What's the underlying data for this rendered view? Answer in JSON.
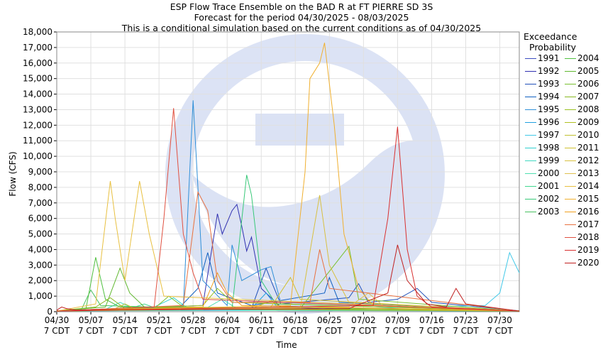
{
  "chart_data": {
    "type": "line",
    "title": "ESP Flow Trace Ensemble on the BAD R at FT PIERRE SD 3S",
    "subtitle": "Forecast for the period 04/30/2025 - 08/03/2025",
    "subtitle2": "This is a conditional simulation based on the current conditions as of 04/30/2025",
    "xlabel": "Time",
    "ylabel": "Flow (CFS)",
    "ylim": [
      0,
      18000
    ],
    "xlim_days": [
      0,
      95
    ],
    "yticks": [
      0,
      1000,
      2000,
      3000,
      4000,
      5000,
      6000,
      7000,
      8000,
      9000,
      10000,
      11000,
      12000,
      13000,
      14000,
      15000,
      16000,
      17000,
      18000
    ],
    "ytick_labels": [
      "0",
      "1,000",
      "2,000",
      "3,000",
      "4,000",
      "5,000",
      "6,000",
      "7,000",
      "8,000",
      "9,000",
      "10,000",
      "11,000",
      "12,000",
      "13,000",
      "14,000",
      "15,000",
      "16,000",
      "17,000",
      "18,000"
    ],
    "xticks": [
      {
        "day": 0,
        "l1": "04/30",
        "l2": "7 CDT"
      },
      {
        "day": 7,
        "l1": "05/07",
        "l2": "7 CDT"
      },
      {
        "day": 14,
        "l1": "05/14",
        "l2": "7 CDT"
      },
      {
        "day": 21,
        "l1": "05/21",
        "l2": "7 CDT"
      },
      {
        "day": 28,
        "l1": "05/28",
        "l2": "7 CDT"
      },
      {
        "day": 35,
        "l1": "06/04",
        "l2": "7 CDT"
      },
      {
        "day": 42,
        "l1": "06/11",
        "l2": "7 CDT"
      },
      {
        "day": 49,
        "l1": "06/18",
        "l2": "7 CDT"
      },
      {
        "day": 56,
        "l1": "06/25",
        "l2": "7 CDT"
      },
      {
        "day": 63,
        "l1": "07/02",
        "l2": "7 CDT"
      },
      {
        "day": 70,
        "l1": "07/09",
        "l2": "7 CDT"
      },
      {
        "day": 77,
        "l1": "07/16",
        "l2": "7 CDT"
      },
      {
        "day": 84,
        "l1": "07/23",
        "l2": "7 CDT"
      },
      {
        "day": 91,
        "l1": "07/30",
        "l2": "7 CDT"
      }
    ],
    "grid": true,
    "legend_title": [
      "Exceedance",
      "Probability"
    ],
    "legend_position": "right",
    "watermark": "NOAA",
    "series": [
      {
        "name": "1991",
        "color": "#3b4cc0",
        "points": [
          [
            0,
            50
          ],
          [
            20,
            80
          ],
          [
            40,
            150
          ],
          [
            60,
            120
          ],
          [
            80,
            60
          ],
          [
            95,
            40
          ]
        ]
      },
      {
        "name": "1992",
        "color": "#3030b0",
        "points": [
          [
            0,
            60
          ],
          [
            30,
            400
          ],
          [
            33,
            6300
          ],
          [
            34,
            5000
          ],
          [
            36,
            6500
          ],
          [
            37,
            6900
          ],
          [
            38,
            5500
          ],
          [
            39,
            3900
          ],
          [
            40,
            4800
          ],
          [
            42,
            1500
          ],
          [
            46,
            300
          ],
          [
            60,
            120
          ],
          [
            95,
            50
          ]
        ]
      },
      {
        "name": "1993",
        "color": "#2050b8",
        "points": [
          [
            0,
            60
          ],
          [
            40,
            200
          ],
          [
            43,
            2800
          ],
          [
            44,
            2000
          ],
          [
            46,
            500
          ],
          [
            60,
            900
          ],
          [
            62,
            1800
          ],
          [
            64,
            600
          ],
          [
            70,
            800
          ],
          [
            74,
            1500
          ],
          [
            77,
            600
          ],
          [
            95,
            60
          ]
        ]
      },
      {
        "name": "1994",
        "color": "#1060c0",
        "points": [
          [
            0,
            50
          ],
          [
            25,
            200
          ],
          [
            29,
            1500
          ],
          [
            31,
            3800
          ],
          [
            33,
            1200
          ],
          [
            40,
            400
          ],
          [
            55,
            1200
          ],
          [
            56,
            2200
          ],
          [
            58,
            600
          ],
          [
            95,
            40
          ]
        ]
      },
      {
        "name": "1995",
        "color": "#2f8fd8",
        "points": [
          [
            0,
            50
          ],
          [
            26,
            300
          ],
          [
            28,
            13600
          ],
          [
            29,
            8000
          ],
          [
            30,
            2000
          ],
          [
            35,
            400
          ],
          [
            36,
            4300
          ],
          [
            38,
            2000
          ],
          [
            42,
            2700
          ],
          [
            44,
            2900
          ],
          [
            46,
            600
          ],
          [
            95,
            60
          ]
        ]
      },
      {
        "name": "1996",
        "color": "#20a0e0",
        "points": [
          [
            0,
            50
          ],
          [
            40,
            200
          ],
          [
            43,
            1200
          ],
          [
            45,
            400
          ],
          [
            60,
            150
          ],
          [
            95,
            50
          ]
        ]
      },
      {
        "name": "1997",
        "color": "#40c8e8",
        "points": [
          [
            0,
            40
          ],
          [
            50,
            100
          ],
          [
            88,
            400
          ],
          [
            91,
            1200
          ],
          [
            93,
            3800
          ],
          [
            95,
            2500
          ]
        ]
      },
      {
        "name": "1998",
        "color": "#30d0d0",
        "points": [
          [
            0,
            40
          ],
          [
            20,
            300
          ],
          [
            24,
            900
          ],
          [
            27,
            200
          ],
          [
            50,
            80
          ],
          [
            95,
            40
          ]
        ]
      },
      {
        "name": "1999",
        "color": "#40d8c0",
        "points": [
          [
            0,
            50
          ],
          [
            10,
            150
          ],
          [
            13,
            600
          ],
          [
            16,
            200
          ],
          [
            40,
            100
          ],
          [
            95,
            50
          ]
        ]
      },
      {
        "name": "2000",
        "color": "#50e0b0",
        "points": [
          [
            0,
            40
          ],
          [
            30,
            100
          ],
          [
            34,
            800
          ],
          [
            37,
            200
          ],
          [
            60,
            100
          ],
          [
            95,
            40
          ]
        ]
      },
      {
        "name": "2001",
        "color": "#40d890",
        "points": [
          [
            0,
            40
          ],
          [
            15,
            200
          ],
          [
            18,
            500
          ],
          [
            21,
            150
          ],
          [
            95,
            40
          ]
        ]
      },
      {
        "name": "2002",
        "color": "#38c878",
        "points": [
          [
            0,
            50
          ],
          [
            36,
            200
          ],
          [
            39,
            8800
          ],
          [
            40,
            7500
          ],
          [
            42,
            2000
          ],
          [
            45,
            500
          ],
          [
            95,
            50
          ]
        ]
      },
      {
        "name": "2003",
        "color": "#48c060",
        "points": [
          [
            0,
            40
          ],
          [
            5,
            100
          ],
          [
            7,
            1400
          ],
          [
            9,
            400
          ],
          [
            30,
            200
          ],
          [
            95,
            40
          ]
        ]
      },
      {
        "name": "2004",
        "color": "#50c040",
        "points": [
          [
            0,
            40
          ],
          [
            6,
            200
          ],
          [
            8,
            3500
          ],
          [
            10,
            800
          ],
          [
            13,
            300
          ],
          [
            95,
            40
          ]
        ]
      },
      {
        "name": "2005",
        "color": "#60b830",
        "points": [
          [
            0,
            50
          ],
          [
            10,
            300
          ],
          [
            13,
            2800
          ],
          [
            15,
            1200
          ],
          [
            18,
            300
          ],
          [
            95,
            50
          ]
        ]
      },
      {
        "name": "2006",
        "color": "#78c030",
        "points": [
          [
            0,
            40
          ],
          [
            20,
            200
          ],
          [
            23,
            1000
          ],
          [
            26,
            300
          ],
          [
            50,
            200
          ],
          [
            60,
            4200
          ],
          [
            62,
            800
          ],
          [
            95,
            40
          ]
        ]
      },
      {
        "name": "2007",
        "color": "#88b820",
        "points": [
          [
            0,
            50
          ],
          [
            8,
            300
          ],
          [
            11,
            900
          ],
          [
            14,
            200
          ],
          [
            95,
            40
          ]
        ]
      },
      {
        "name": "2008",
        "color": "#98c020",
        "points": [
          [
            0,
            40
          ],
          [
            30,
            400
          ],
          [
            33,
            1500
          ],
          [
            36,
            600
          ],
          [
            95,
            40
          ]
        ]
      },
      {
        "name": "2009",
        "color": "#b0c020",
        "points": [
          [
            0,
            40
          ],
          [
            40,
            200
          ],
          [
            44,
            700
          ],
          [
            46,
            300
          ],
          [
            95,
            40
          ]
        ]
      },
      {
        "name": "2010",
        "color": "#c0c030",
        "points": [
          [
            0,
            50
          ],
          [
            12,
            200
          ],
          [
            14,
            500
          ],
          [
            16,
            200
          ],
          [
            95,
            50
          ]
        ]
      },
      {
        "name": "2011",
        "color": "#d0c030",
        "points": [
          [
            0,
            40
          ],
          [
            44,
            300
          ],
          [
            48,
            2200
          ],
          [
            50,
            800
          ],
          [
            95,
            40
          ]
        ]
      },
      {
        "name": "2012",
        "color": "#d8c040",
        "points": [
          [
            0,
            50
          ],
          [
            50,
            200
          ],
          [
            54,
            7500
          ],
          [
            56,
            3000
          ],
          [
            60,
            600
          ],
          [
            95,
            50
          ]
        ]
      },
      {
        "name": "2013",
        "color": "#e0c050",
        "points": [
          [
            0,
            40
          ],
          [
            60,
            300
          ],
          [
            64,
            1200
          ],
          [
            67,
            400
          ],
          [
            95,
            40
          ]
        ]
      },
      {
        "name": "2014",
        "color": "#e8c040",
        "points": [
          [
            0,
            40
          ],
          [
            8,
            500
          ],
          [
            11,
            8400
          ],
          [
            12,
            6000
          ],
          [
            14,
            2000
          ],
          [
            17,
            8400
          ],
          [
            19,
            5000
          ],
          [
            22,
            1000
          ],
          [
            95,
            40
          ]
        ]
      },
      {
        "name": "2015",
        "color": "#f0b030",
        "points": [
          [
            0,
            40
          ],
          [
            48,
            400
          ],
          [
            51,
            9000
          ],
          [
            52,
            15000
          ],
          [
            54,
            16000
          ],
          [
            55,
            17300
          ],
          [
            57,
            12000
          ],
          [
            59,
            5000
          ],
          [
            62,
            1500
          ],
          [
            65,
            400
          ],
          [
            95,
            40
          ]
        ]
      },
      {
        "name": "2016",
        "color": "#f0a020",
        "points": [
          [
            0,
            40
          ],
          [
            30,
            300
          ],
          [
            33,
            2500
          ],
          [
            35,
            1200
          ],
          [
            38,
            400
          ],
          [
            95,
            40
          ]
        ]
      },
      {
        "name": "2017",
        "color": "#e87040",
        "points": [
          [
            0,
            40
          ],
          [
            26,
            400
          ],
          [
            29,
            7700
          ],
          [
            31,
            6500
          ],
          [
            33,
            2000
          ],
          [
            36,
            600
          ],
          [
            52,
            600
          ],
          [
            54,
            4000
          ],
          [
            56,
            1500
          ],
          [
            95,
            40
          ]
        ]
      },
      {
        "name": "2018",
        "color": "#e05040",
        "points": [
          [
            0,
            40
          ],
          [
            20,
            300
          ],
          [
            22,
            6000
          ],
          [
            24,
            13100
          ],
          [
            26,
            5000
          ],
          [
            28,
            2500
          ],
          [
            30,
            800
          ],
          [
            95,
            40
          ]
        ]
      },
      {
        "name": "2019",
        "color": "#d83030",
        "points": [
          [
            0,
            40
          ],
          [
            65,
            400
          ],
          [
            68,
            6000
          ],
          [
            70,
            11900
          ],
          [
            72,
            4000
          ],
          [
            74,
            1000
          ],
          [
            77,
            300
          ],
          [
            95,
            40
          ]
        ]
      },
      {
        "name": "2020",
        "color": "#c02020",
        "points": [
          [
            0,
            100
          ],
          [
            1,
            300
          ],
          [
            2,
            200
          ],
          [
            4,
            100
          ],
          [
            60,
            200
          ],
          [
            68,
            1200
          ],
          [
            70,
            4300
          ],
          [
            72,
            2000
          ],
          [
            76,
            500
          ],
          [
            80,
            300
          ],
          [
            82,
            1500
          ],
          [
            84,
            500
          ],
          [
            95,
            40
          ]
        ]
      }
    ]
  }
}
